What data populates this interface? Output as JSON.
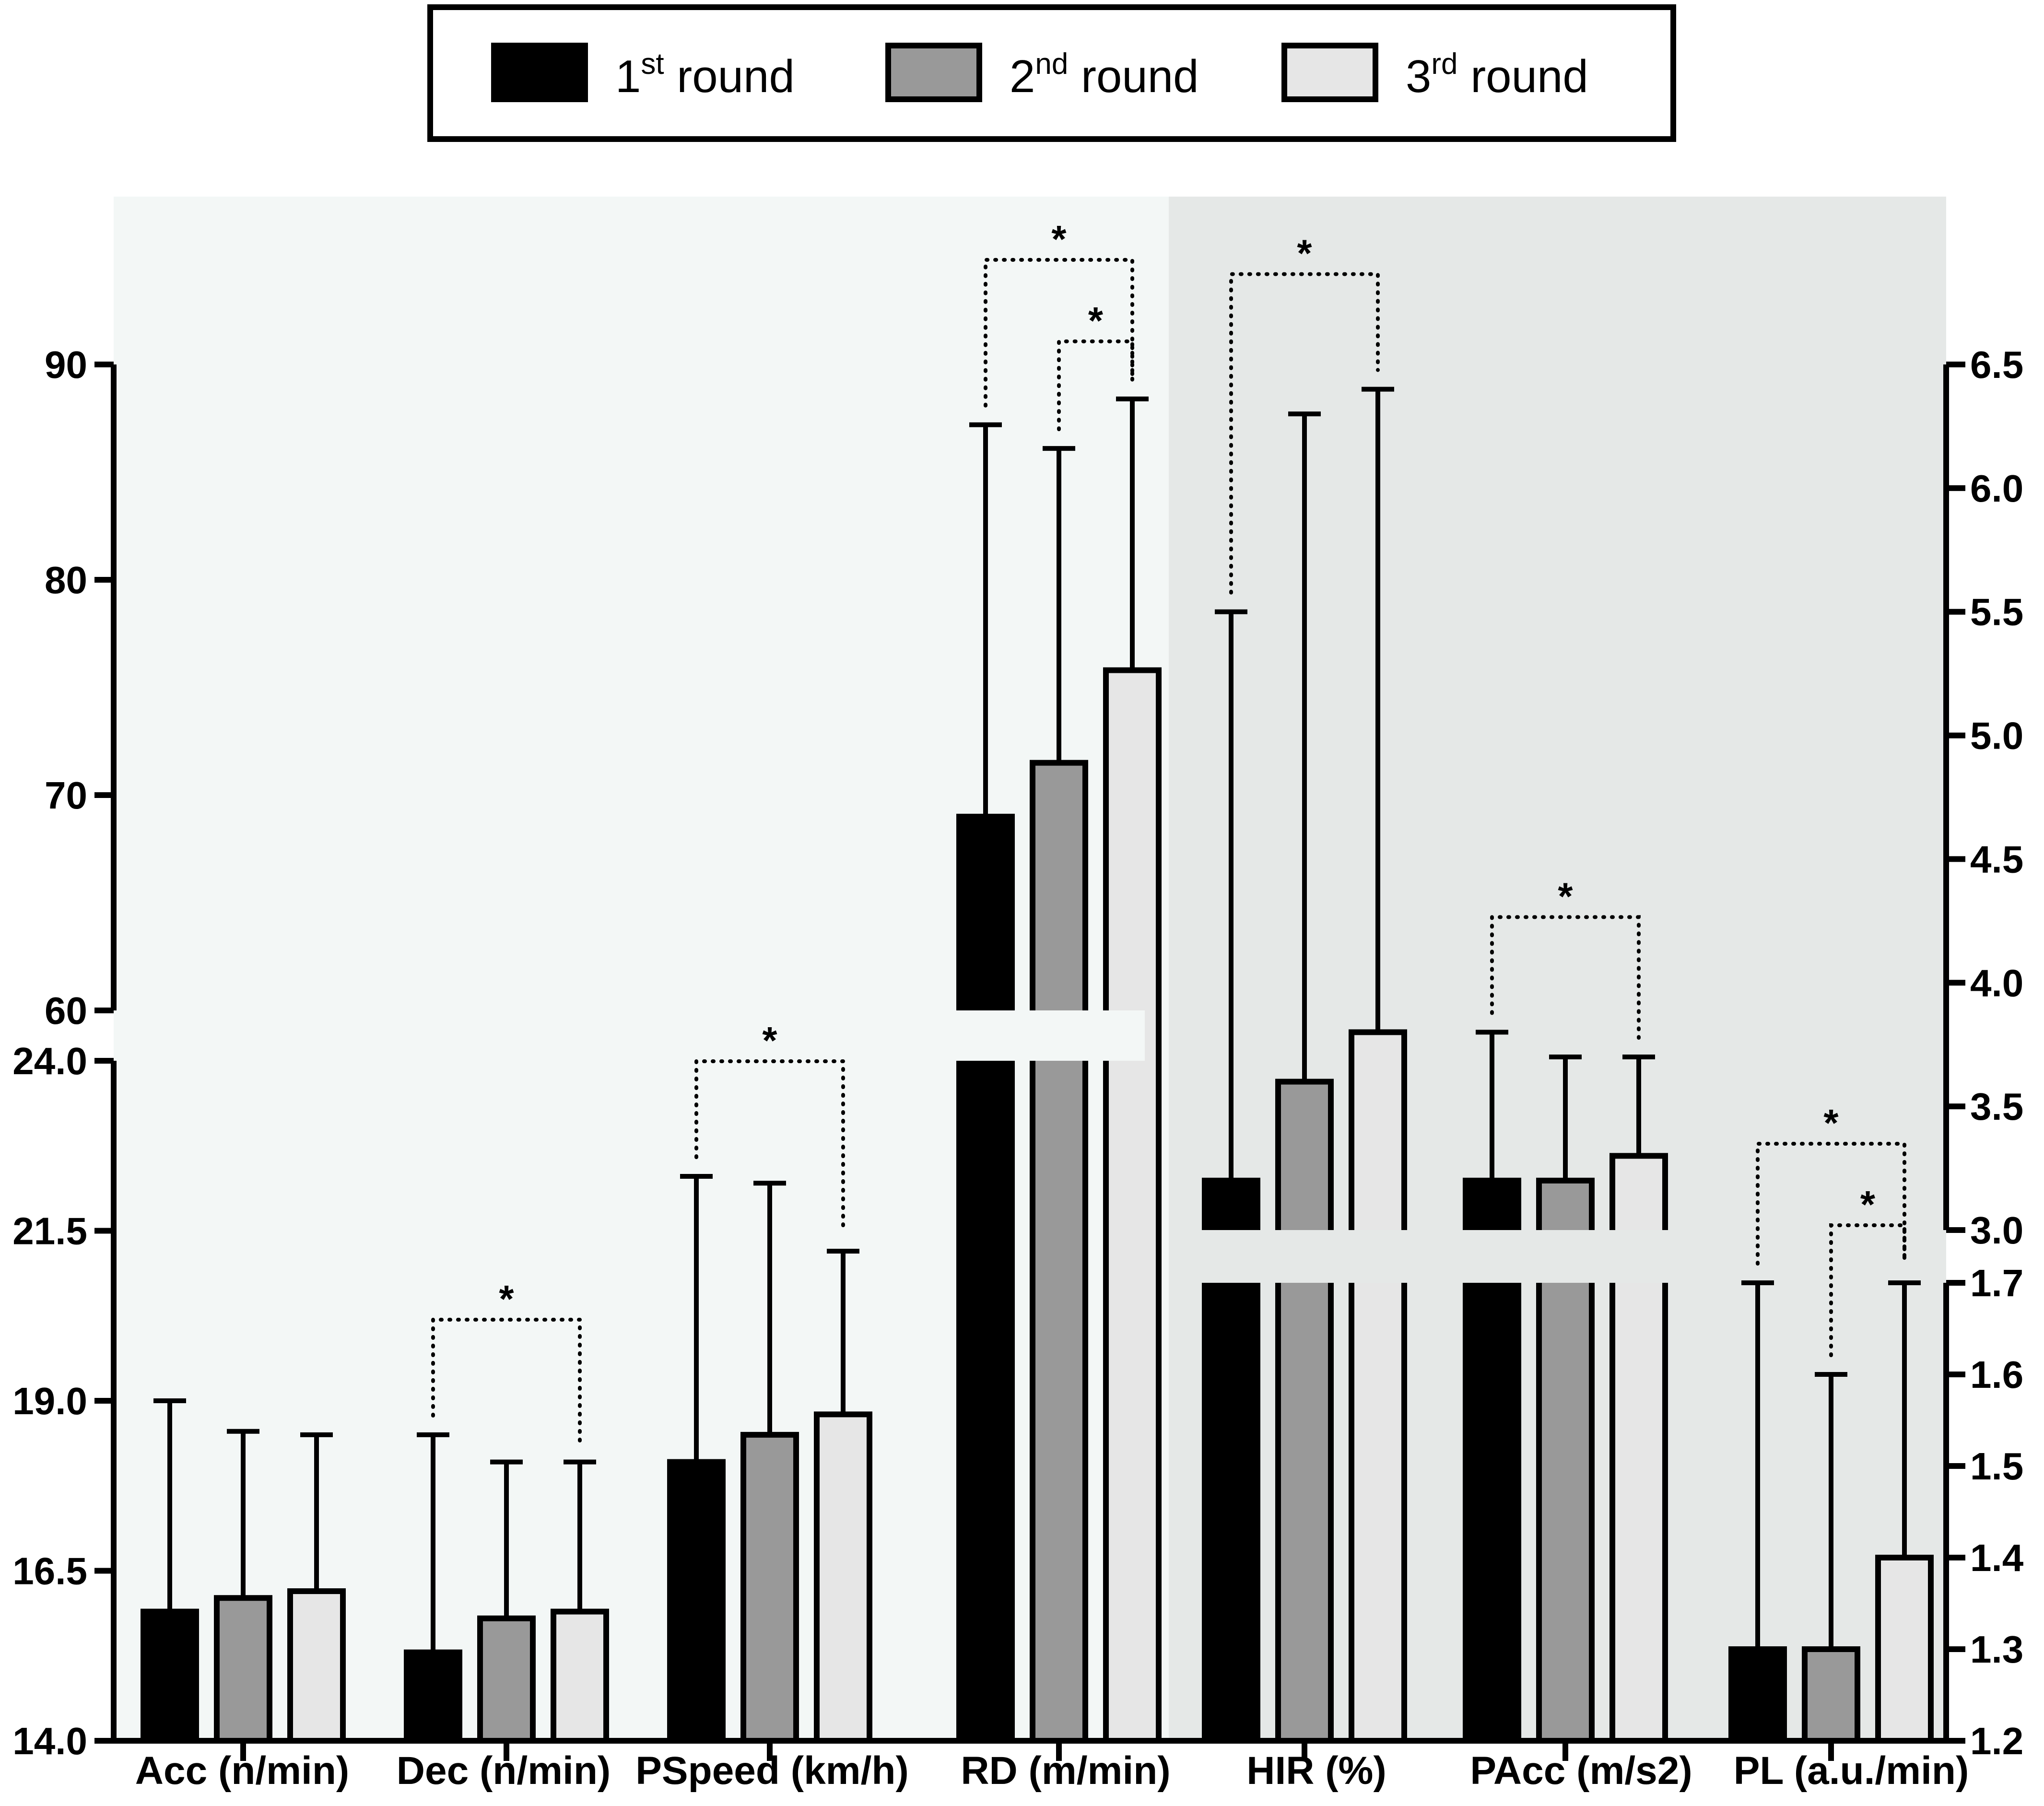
{
  "legend": {
    "items": [
      {
        "num": "1",
        "sup": "st",
        "text": " round",
        "color": "#000000"
      },
      {
        "num": "2",
        "sup": "nd",
        "text": " round",
        "color": "#999999"
      },
      {
        "num": "3",
        "sup": "rd",
        "text": " round",
        "color": "#e6e6e6"
      }
    ]
  },
  "chart_data": {
    "type": "bar",
    "grouped": true,
    "series": [
      {
        "name": "1st round",
        "color": "#000000"
      },
      {
        "name": "2nd round",
        "color": "#999999"
      },
      {
        "name": "3rd round",
        "color": "#e6e6e6"
      }
    ],
    "categories": [
      "Acc (n/min)",
      "Dec (n/min)",
      "PSpeed (km/h)",
      "RD (m/min)",
      "HIR (%)",
      "PAcc (m/s2)",
      "PL (a.u./min)"
    ],
    "axes": {
      "left_lower": {
        "range": [
          14.0,
          24.0
        ],
        "ticks": [
          "14.0",
          "16.5",
          "19.0",
          "21.5",
          "24.0"
        ]
      },
      "left_upper": {
        "range": [
          60,
          90
        ],
        "ticks": [
          "60",
          "70",
          "80",
          "90"
        ]
      },
      "right_upper": {
        "range": [
          3.0,
          6.5
        ],
        "ticks": [
          "3.0",
          "3.5",
          "4.0",
          "4.5",
          "5.0",
          "5.5",
          "6.0",
          "6.5"
        ]
      },
      "right_lower": {
        "range": [
          1.2,
          1.7
        ],
        "ticks": [
          "1.2",
          "1.3",
          "1.4",
          "1.5",
          "1.6",
          "1.7"
        ]
      }
    },
    "groups": [
      {
        "category": "Acc (n/min)",
        "axis": "left_lower",
        "means": [
          15.9,
          16.1,
          16.2
        ],
        "sd_upper": [
          19.0,
          18.55,
          18.5
        ]
      },
      {
        "category": "Dec (n/min)",
        "axis": "left_lower",
        "means": [
          15.3,
          15.8,
          15.9
        ],
        "sd_upper": [
          18.5,
          18.1,
          18.1
        ]
      },
      {
        "category": "PSpeed (km/h)",
        "axis": "left_lower",
        "means": [
          18.1,
          18.5,
          18.8
        ],
        "sd_upper": [
          22.3,
          22.2,
          21.2
        ]
      },
      {
        "category": "RD (m/min)",
        "axis": "left_upper",
        "means": [
          69.0,
          71.5,
          75.8
        ],
        "sd_upper": [
          87.2,
          86.1,
          88.4
        ]
      },
      {
        "category": "HIR (%)",
        "axis": "right_upper",
        "means": [
          3.2,
          3.6,
          3.8
        ],
        "sd_upper": [
          5.5,
          6.3,
          6.4
        ]
      },
      {
        "category": "PAcc (m/s2)",
        "axis": "right_upper",
        "means": [
          3.2,
          3.2,
          3.3
        ],
        "sd_upper": [
          3.8,
          3.7,
          3.7
        ]
      },
      {
        "category": "PL (a.u./min)",
        "axis": "right_lower",
        "means": [
          1.3,
          1.3,
          1.4
        ],
        "sd_upper": [
          1.7,
          1.6,
          1.7
        ]
      }
    ],
    "significance": [
      {
        "group": "Dec (n/min)",
        "from": 0,
        "to": 2,
        "label": "*"
      },
      {
        "group": "PSpeed (km/h)",
        "from": 0,
        "to": 2,
        "label": "*"
      },
      {
        "group": "RD (m/min)",
        "from": 0,
        "to": 2,
        "label": "*"
      },
      {
        "group": "RD (m/min)",
        "from": 1,
        "to": 2,
        "label": "*"
      },
      {
        "group": "HIR (%)",
        "from": 0,
        "to": 2,
        "label": "*"
      },
      {
        "group": "PAcc (m/s2)",
        "from": 0,
        "to": 2,
        "label": "*"
      },
      {
        "group": "PL (a.u./min)",
        "from": 0,
        "to": 2,
        "label": "*"
      },
      {
        "group": "PL (a.u./min)",
        "from": 1,
        "to": 2,
        "label": "*"
      }
    ],
    "background": {
      "left_panel": "#f3f7f6",
      "right_panel": "#e5e8e7"
    }
  }
}
